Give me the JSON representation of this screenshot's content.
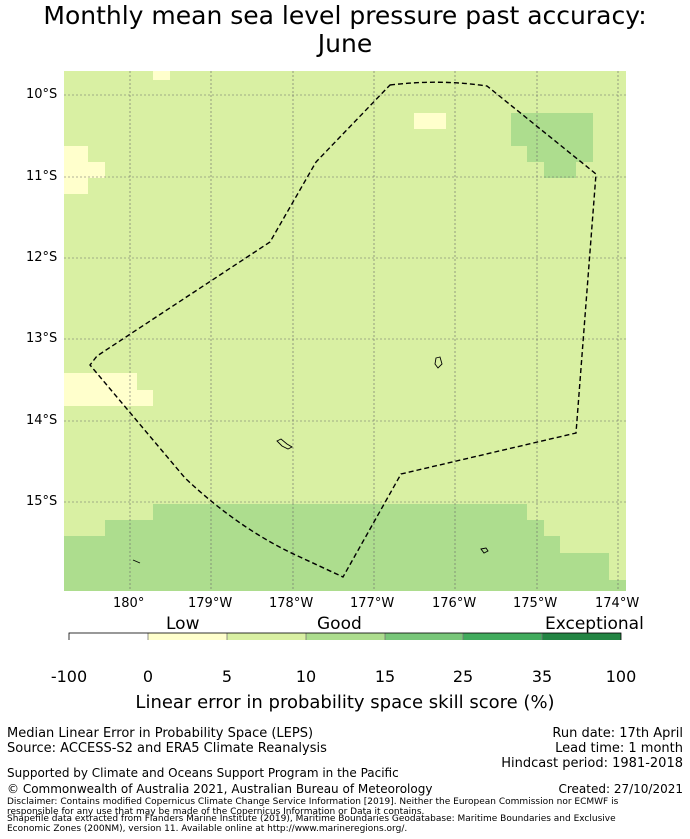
{
  "title": {
    "line1": "Monthly mean sea level pressure past accuracy:",
    "line2": "June"
  },
  "map": {
    "lat_labels": [
      "10°S",
      "11°S",
      "12°S",
      "13°S",
      "14°S",
      "15°S"
    ],
    "lon_labels": [
      "180°",
      "179°W",
      "178°W",
      "177°W",
      "176°W",
      "175°W",
      "174°W"
    ],
    "colors": {
      "low": "#ffffcc",
      "good_low": "#d9f0a3",
      "good_high": "#addd8e",
      "boundary": "#000000"
    }
  },
  "colorbar": {
    "categories": [
      "Low",
      "Good",
      "Exceptional"
    ],
    "ticks": [
      "-100",
      "0",
      "5",
      "10",
      "15",
      "25",
      "35",
      "100"
    ],
    "colors": [
      "#ffffff",
      "#ffffcc",
      "#d9f0a3",
      "#addd8e",
      "#78c679",
      "#41ab5d",
      "#238443"
    ],
    "label": "Linear error in probability space skill score (%)"
  },
  "footer": {
    "metric": "Median Linear Error in Probability Space (LEPS)",
    "source": "Source: ACCESS-S2 and ERA5 Climate Reanalysis",
    "run_date": "Run date: 17th April",
    "lead_time": "Lead time: 1 month",
    "hindcast": "Hindcast period: 1981-2018",
    "support": "Supported by Climate and Oceans Support Program in the Pacific",
    "copyright": "© Commonwealth of Australia 2021, Australian Bureau of Meteorology",
    "created": "Created: 27/10/2021",
    "disclaimer1": "Disclaimer: Contains modified Copernicus Climate Change Service Information [2019]. Neither the European Commission nor ECMWF is responsible for any use that may be made of the Copernicus Information or Data it contains.",
    "disclaimer2": "Shapefile data extracted from Flanders Marine Institute (2019), Maritime Boundaries Geodatabase: Maritime Boundaries and Exclusive Economic Zones (200NM), version 11. Available online at http://www.marineregions.org/."
  }
}
